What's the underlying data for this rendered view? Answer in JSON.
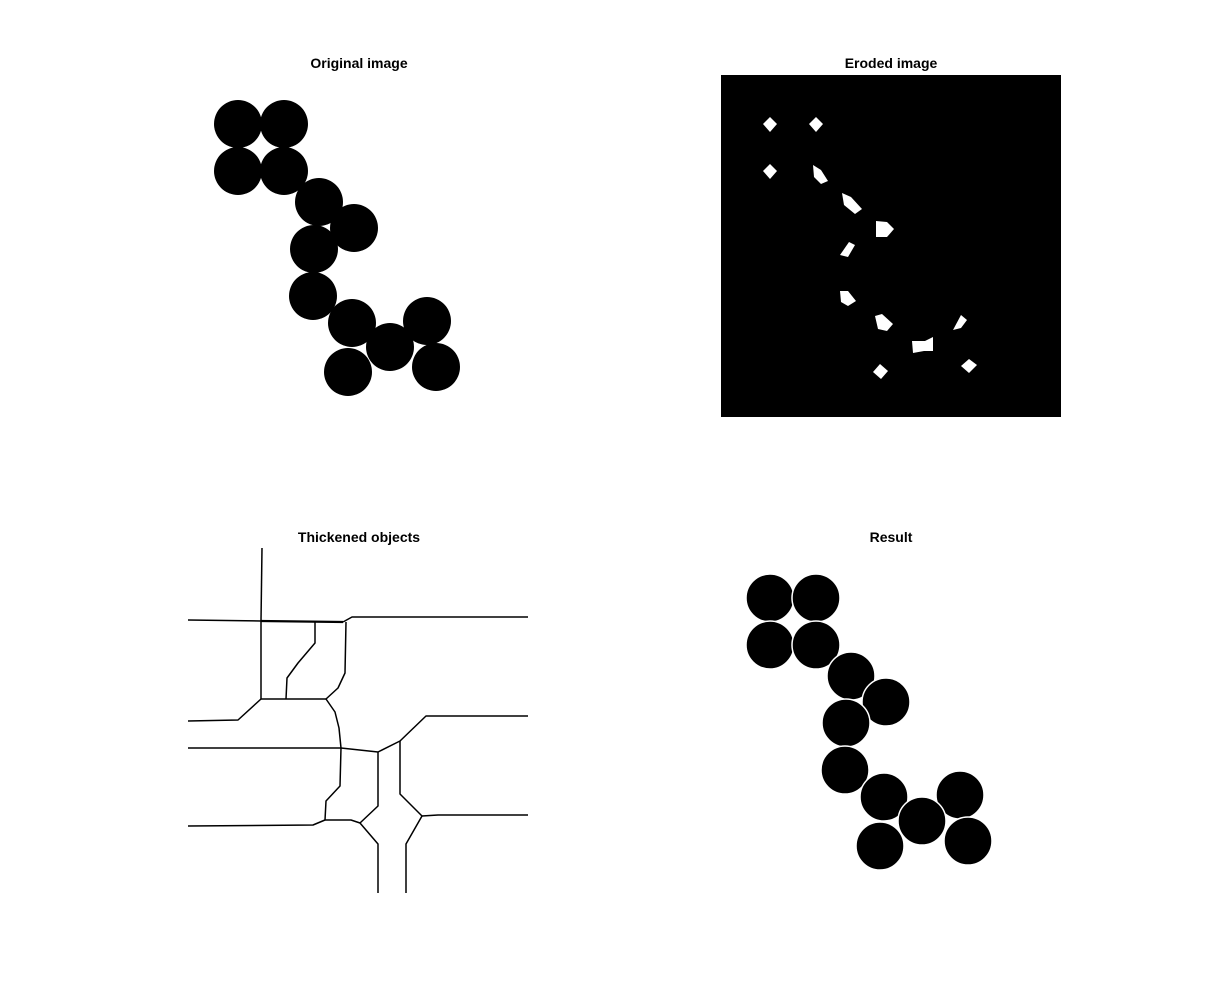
{
  "figure": {
    "panels": [
      {
        "id": "original",
        "title": "Original image"
      },
      {
        "id": "eroded",
        "title": "Eroded image"
      },
      {
        "id": "thickened",
        "title": "Thickened objects"
      },
      {
        "id": "result",
        "title": "Result"
      }
    ],
    "colors": {
      "background": "#ffffff",
      "object": "#000000",
      "eroded_background": "#000000",
      "eroded_marker": "#ffffff",
      "line": "#000000"
    }
  }
}
